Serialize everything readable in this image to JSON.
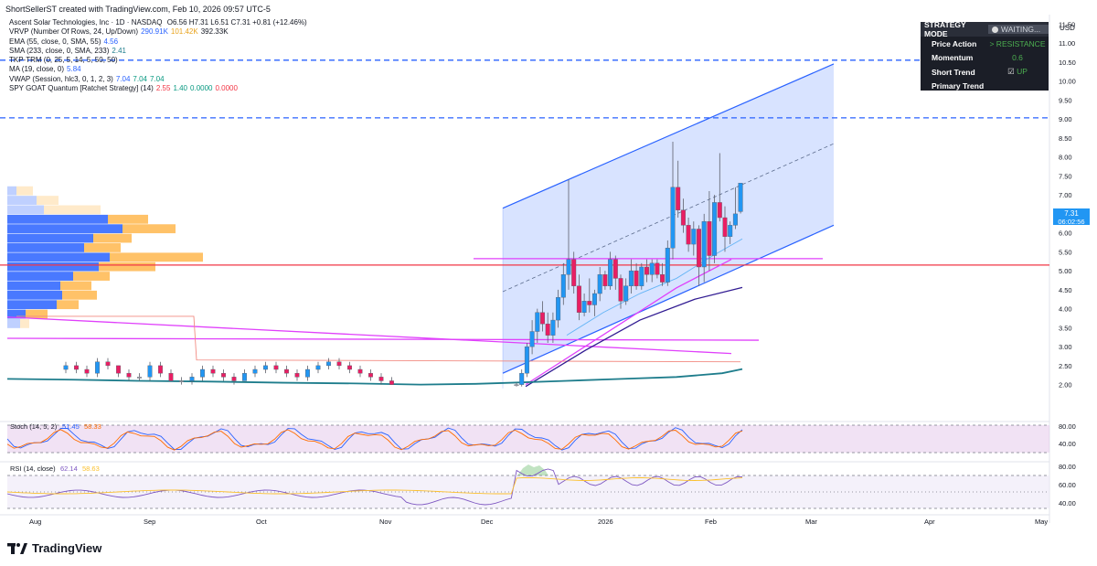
{
  "header": {
    "title": "ShortSellerST created with TradingView.com, Feb 10, 2026 09:57 UTC-5"
  },
  "legend": {
    "symbol": "Ascent Solar Technologies, Inc · 1D · NASDAQ",
    "ohlc": "O6.56 H7.31 L6.51 C7.31 +0.81 (+12.46%)",
    "indicators": [
      {
        "label": "VRVP (Number Of Rows, 24, Up/Down)",
        "values": [
          {
            "text": "290.91K",
            "color": "#2962ff"
          },
          {
            "text": "101.42K",
            "color": "#e8a21b"
          },
          {
            "text": "392.33K",
            "color": "#131722"
          }
        ]
      },
      {
        "label": "EMA (55, close, 0, SMA, 55)",
        "values": [
          {
            "text": "4.56",
            "color": "#2962ff"
          }
        ]
      },
      {
        "label": "SMA (233, close, 0, SMA, 233)",
        "values": [
          {
            "text": "2.41",
            "color": "#1e7d8c"
          }
        ]
      },
      {
        "label": "TKP-TRM (0, 25, 5, 14, 5, 50, 50)",
        "values": []
      },
      {
        "label": "MA (19, close, 0)",
        "values": [
          {
            "text": "5.84",
            "color": "#2962ff"
          }
        ]
      },
      {
        "label": "VWAP (Session, hlc3, 0, 1, 2, 3)",
        "values": [
          {
            "text": "7.04",
            "color": "#2962ff"
          },
          {
            "text": "7.04",
            "color": "#089981"
          },
          {
            "text": "7.04",
            "color": "#089981"
          }
        ]
      },
      {
        "label": "SPY GOAT Quantum [Ratchet Strategy] (14)",
        "values": [
          {
            "text": "2.55",
            "color": "#f23645"
          },
          {
            "text": "1.40",
            "color": "#089981"
          },
          {
            "text": "0.0000",
            "color": "#089981"
          },
          {
            "text": "0.0000",
            "color": "#f23645"
          }
        ]
      }
    ]
  },
  "strategy_panel": {
    "header": "STRATEGY MODE",
    "status": "WAITING...",
    "rows": [
      {
        "label": "Price Action",
        "value": "> RESISTANCE",
        "color": "#4caf50"
      },
      {
        "label": "Momentum",
        "value": "0.6",
        "color": "#4caf50"
      },
      {
        "label": "Short Trend",
        "value": "UP",
        "color": "#4caf50"
      },
      {
        "label": "Primary Trend",
        "value": "",
        "color": "#4caf50"
      }
    ]
  },
  "price_axis": {
    "currency": "USD",
    "ticks": [
      "11.50",
      "11.00",
      "10.50",
      "10.00",
      "9.50",
      "9.00",
      "8.50",
      "8.00",
      "7.50",
      "7.00",
      "6.50",
      "6.00",
      "5.50",
      "5.00",
      "4.50",
      "4.00",
      "3.50",
      "3.00",
      "2.50",
      "2.00"
    ],
    "last_price": "7.31",
    "countdown": "06:02:56"
  },
  "time_axis": [
    "Aug",
    "Sep",
    "Oct",
    "Nov",
    "Dec",
    "2026",
    "Feb",
    "Mar",
    "Apr",
    "May"
  ],
  "stoch_panel": {
    "label": "Stoch (14, 5, 2)",
    "k": "51.45",
    "d": "58.33",
    "ticks": [
      "80.00",
      "40.00"
    ]
  },
  "rsi_panel": {
    "label": "RSI (14, close)",
    "rsi": "62.14",
    "ma": "58.63",
    "ticks": [
      "80.00",
      "60.00",
      "40.00"
    ]
  },
  "footer": {
    "brand": "TradingView"
  },
  "colors": {
    "up": "#2196f3",
    "down": "#e91e63",
    "doji": "#b2b5be",
    "channel": "#2962ff",
    "magenta": "#e040fb",
    "red": "#f23645"
  },
  "chart_data": {
    "type": "candlestick",
    "ylim": [
      1.9,
      11.75
    ],
    "timeframe": "1D",
    "candles": [
      {
        "date": "2025-12-08",
        "o": 2.0,
        "h": 2.05,
        "l": 1.95,
        "c": 2.0
      },
      {
        "date": "2025-12-09",
        "o": 2.0,
        "h": 2.4,
        "l": 1.95,
        "c": 2.3
      },
      {
        "date": "2025-12-10",
        "o": 2.3,
        "h": 3.1,
        "l": 2.2,
        "c": 3.0
      },
      {
        "date": "2025-12-11",
        "o": 3.0,
        "h": 3.7,
        "l": 2.8,
        "c": 3.4
      },
      {
        "date": "2025-12-12",
        "o": 3.4,
        "h": 4.0,
        "l": 3.1,
        "c": 3.9
      },
      {
        "date": "2025-12-15",
        "o": 3.9,
        "h": 4.2,
        "l": 3.4,
        "c": 3.6
      },
      {
        "date": "2025-12-16",
        "o": 3.6,
        "h": 3.9,
        "l": 3.1,
        "c": 3.3
      },
      {
        "date": "2025-12-17",
        "o": 3.3,
        "h": 3.9,
        "l": 3.1,
        "c": 3.7
      },
      {
        "date": "2025-12-18",
        "o": 3.7,
        "h": 4.5,
        "l": 3.5,
        "c": 4.3
      },
      {
        "date": "2025-12-19",
        "o": 4.3,
        "h": 5.2,
        "l": 4.1,
        "c": 4.9
      },
      {
        "date": "2025-12-22",
        "o": 4.9,
        "h": 7.4,
        "l": 4.5,
        "c": 5.3
      },
      {
        "date": "2025-12-23",
        "o": 5.3,
        "h": 5.5,
        "l": 4.4,
        "c": 4.6
      },
      {
        "date": "2025-12-24",
        "o": 4.6,
        "h": 4.9,
        "l": 3.7,
        "c": 3.9
      },
      {
        "date": "2025-12-26",
        "o": 3.9,
        "h": 4.4,
        "l": 3.8,
        "c": 4.2
      },
      {
        "date": "2025-12-29",
        "o": 4.2,
        "h": 4.8,
        "l": 3.9,
        "c": 4.1
      },
      {
        "date": "2025-12-30",
        "o": 4.1,
        "h": 4.5,
        "l": 3.8,
        "c": 4.4
      },
      {
        "date": "2025-12-31",
        "o": 4.4,
        "h": 5.1,
        "l": 4.2,
        "c": 4.9
      },
      {
        "date": "2026-01-02",
        "o": 4.9,
        "h": 5.0,
        "l": 4.5,
        "c": 4.6
      },
      {
        "date": "2026-01-05",
        "o": 4.6,
        "h": 5.5,
        "l": 4.5,
        "c": 5.3
      },
      {
        "date": "2026-01-06",
        "o": 5.3,
        "h": 5.4,
        "l": 4.5,
        "c": 4.8
      },
      {
        "date": "2026-01-07",
        "o": 4.8,
        "h": 4.9,
        "l": 4.0,
        "c": 4.2
      },
      {
        "date": "2026-01-08",
        "o": 4.2,
        "h": 4.8,
        "l": 4.1,
        "c": 4.6
      },
      {
        "date": "2026-01-09",
        "o": 4.6,
        "h": 5.3,
        "l": 4.4,
        "c": 5.0
      },
      {
        "date": "2026-01-12",
        "o": 5.0,
        "h": 5.2,
        "l": 4.5,
        "c": 4.6
      },
      {
        "date": "2026-01-13",
        "o": 4.6,
        "h": 5.2,
        "l": 4.5,
        "c": 5.1
      },
      {
        "date": "2026-01-14",
        "o": 5.1,
        "h": 5.3,
        "l": 4.7,
        "c": 4.9
      },
      {
        "date": "2026-01-15",
        "o": 4.9,
        "h": 5.3,
        "l": 4.7,
        "c": 5.2
      },
      {
        "date": "2026-01-16",
        "o": 5.2,
        "h": 5.3,
        "l": 4.8,
        "c": 4.9
      },
      {
        "date": "2026-01-20",
        "o": 4.9,
        "h": 5.2,
        "l": 4.6,
        "c": 4.7
      },
      {
        "date": "2026-01-21",
        "o": 4.7,
        "h": 5.8,
        "l": 4.6,
        "c": 5.6
      },
      {
        "date": "2026-01-22",
        "o": 5.6,
        "h": 8.4,
        "l": 5.3,
        "c": 7.2
      },
      {
        "date": "2026-01-23",
        "o": 7.2,
        "h": 7.9,
        "l": 6.4,
        "c": 6.6
      },
      {
        "date": "2026-01-26",
        "o": 6.6,
        "h": 6.9,
        "l": 6.0,
        "c": 6.2
      },
      {
        "date": "2026-01-27",
        "o": 6.2,
        "h": 6.4,
        "l": 5.5,
        "c": 5.7
      },
      {
        "date": "2026-01-28",
        "o": 5.7,
        "h": 6.3,
        "l": 5.4,
        "c": 6.1
      },
      {
        "date": "2026-01-29",
        "o": 6.1,
        "h": 6.2,
        "l": 4.6,
        "c": 5.1
      },
      {
        "date": "2026-01-30",
        "o": 5.1,
        "h": 6.5,
        "l": 4.7,
        "c": 6.3
      },
      {
        "date": "2026-02-02",
        "o": 6.3,
        "h": 7.1,
        "l": 5.0,
        "c": 5.4
      },
      {
        "date": "2026-02-03",
        "o": 5.4,
        "h": 7.0,
        "l": 5.2,
        "c": 6.8
      },
      {
        "date": "2026-02-04",
        "o": 6.8,
        "h": 8.1,
        "l": 6.3,
        "c": 6.4
      },
      {
        "date": "2026-02-05",
        "o": 6.4,
        "h": 6.7,
        "l": 5.5,
        "c": 5.9
      },
      {
        "date": "2026-02-06",
        "o": 5.9,
        "h": 6.3,
        "l": 5.7,
        "c": 6.2
      },
      {
        "date": "2026-02-09",
        "o": 6.2,
        "h": 7.2,
        "l": 6.1,
        "c": 6.5
      },
      {
        "date": "2026-02-10",
        "o": 6.56,
        "h": 7.31,
        "l": 6.51,
        "c": 7.31
      }
    ],
    "history_candles": [
      {
        "o": 2.4,
        "h": 2.6,
        "l": 2.3,
        "c": 2.5
      },
      {
        "o": 2.5,
        "h": 2.6,
        "l": 2.3,
        "c": 2.4
      },
      {
        "o": 2.4,
        "h": 2.5,
        "l": 2.2,
        "c": 2.3
      },
      {
        "o": 2.3,
        "h": 2.7,
        "l": 2.2,
        "c": 2.6
      },
      {
        "o": 2.6,
        "h": 2.7,
        "l": 2.4,
        "c": 2.5
      },
      {
        "o": 2.5,
        "h": 2.5,
        "l": 2.2,
        "c": 2.3
      },
      {
        "o": 2.3,
        "h": 2.4,
        "l": 2.1,
        "c": 2.2
      },
      {
        "o": 2.2,
        "h": 2.3,
        "l": 2.1,
        "c": 2.2
      },
      {
        "o": 2.2,
        "h": 2.6,
        "l": 2.1,
        "c": 2.5
      },
      {
        "o": 2.5,
        "h": 2.6,
        "l": 2.2,
        "c": 2.3
      },
      {
        "o": 2.3,
        "h": 2.4,
        "l": 2.1,
        "c": 2.1
      },
      {
        "o": 2.1,
        "h": 2.2,
        "l": 2.0,
        "c": 2.1
      },
      {
        "o": 2.1,
        "h": 2.3,
        "l": 2.0,
        "c": 2.2
      },
      {
        "o": 2.2,
        "h": 2.5,
        "l": 2.1,
        "c": 2.4
      },
      {
        "o": 2.4,
        "h": 2.5,
        "l": 2.2,
        "c": 2.3
      },
      {
        "o": 2.3,
        "h": 2.4,
        "l": 2.1,
        "c": 2.2
      },
      {
        "o": 2.2,
        "h": 2.3,
        "l": 2.0,
        "c": 2.1
      },
      {
        "o": 2.1,
        "h": 2.4,
        "l": 2.1,
        "c": 2.3
      },
      {
        "o": 2.3,
        "h": 2.5,
        "l": 2.2,
        "c": 2.4
      },
      {
        "o": 2.4,
        "h": 2.6,
        "l": 2.3,
        "c": 2.5
      },
      {
        "o": 2.5,
        "h": 2.6,
        "l": 2.3,
        "c": 2.4
      },
      {
        "o": 2.4,
        "h": 2.5,
        "l": 2.2,
        "c": 2.3
      },
      {
        "o": 2.3,
        "h": 2.4,
        "l": 2.1,
        "c": 2.2
      },
      {
        "o": 2.2,
        "h": 2.5,
        "l": 2.1,
        "c": 2.4
      },
      {
        "o": 2.4,
        "h": 2.6,
        "l": 2.3,
        "c": 2.5
      },
      {
        "o": 2.5,
        "h": 2.7,
        "l": 2.4,
        "c": 2.6
      },
      {
        "o": 2.6,
        "h": 2.7,
        "l": 2.4,
        "c": 2.5
      },
      {
        "o": 2.5,
        "h": 2.6,
        "l": 2.3,
        "c": 2.4
      },
      {
        "o": 2.4,
        "h": 2.5,
        "l": 2.2,
        "c": 2.3
      },
      {
        "o": 2.3,
        "h": 2.4,
        "l": 2.1,
        "c": 2.2
      },
      {
        "o": 2.2,
        "h": 2.3,
        "l": 2.0,
        "c": 2.1
      },
      {
        "o": 2.1,
        "h": 2.2,
        "l": 2.0,
        "c": 2.0
      }
    ],
    "horizontal_lines": [
      {
        "y": 10.55,
        "color": "#2962ff",
        "style": "dashed"
      },
      {
        "y": 9.03,
        "color": "#2962ff",
        "style": "dashed"
      },
      {
        "y": 5.15,
        "color": "#f23645",
        "style": "solid"
      },
      {
        "y": 5.32,
        "color": "#e040fb",
        "style": "solid"
      }
    ],
    "channel": {
      "upper": [
        [
          0,
          6.65
        ],
        [
          1,
          10.45
        ]
      ],
      "lower": [
        [
          0,
          2.3
        ],
        [
          1,
          6.2
        ]
      ],
      "mid": [
        [
          0,
          4.45
        ],
        [
          1,
          8.35
        ]
      ]
    },
    "moving_averages": {
      "ema55": [
        2.0,
        2.05,
        2.1,
        2.2,
        2.35,
        2.55,
        2.8,
        3.05,
        3.3,
        3.55,
        3.8,
        4.05,
        4.3,
        4.56
      ],
      "sma233": [
        2.15,
        2.13,
        2.1,
        2.08,
        2.05,
        2.03,
        2.0,
        2.02,
        2.05,
        2.1,
        2.15,
        2.2,
        2.3,
        2.41
      ]
    },
    "volume_profile_rows": [
      {
        "price": 6.35,
        "up": 0.55,
        "down": 0.22
      },
      {
        "price": 6.1,
        "up": 0.63,
        "down": 0.29
      },
      {
        "price": 5.85,
        "up": 0.47,
        "down": 0.21
      },
      {
        "price": 5.6,
        "up": 0.42,
        "down": 0.2
      },
      {
        "price": 5.35,
        "up": 0.56,
        "down": 0.51
      },
      {
        "price": 5.1,
        "up": 0.5,
        "down": 0.31
      },
      {
        "price": 4.85,
        "up": 0.36,
        "down": 0.2
      },
      {
        "price": 4.6,
        "up": 0.29,
        "down": 0.17
      },
      {
        "price": 4.35,
        "up": 0.3,
        "down": 0.19
      },
      {
        "price": 4.1,
        "up": 0.27,
        "down": 0.12
      },
      {
        "price": 3.85,
        "up": 0.1,
        "down": 0.12
      },
      {
        "price": 3.6,
        "up": 0.07,
        "down": 0.05
      },
      {
        "price": 6.6,
        "up": 0.2,
        "down": 0.31
      },
      {
        "price": 6.85,
        "up": 0.16,
        "down": 0.12
      },
      {
        "price": 7.1,
        "up": 0.05,
        "down": 0.09
      }
    ]
  }
}
